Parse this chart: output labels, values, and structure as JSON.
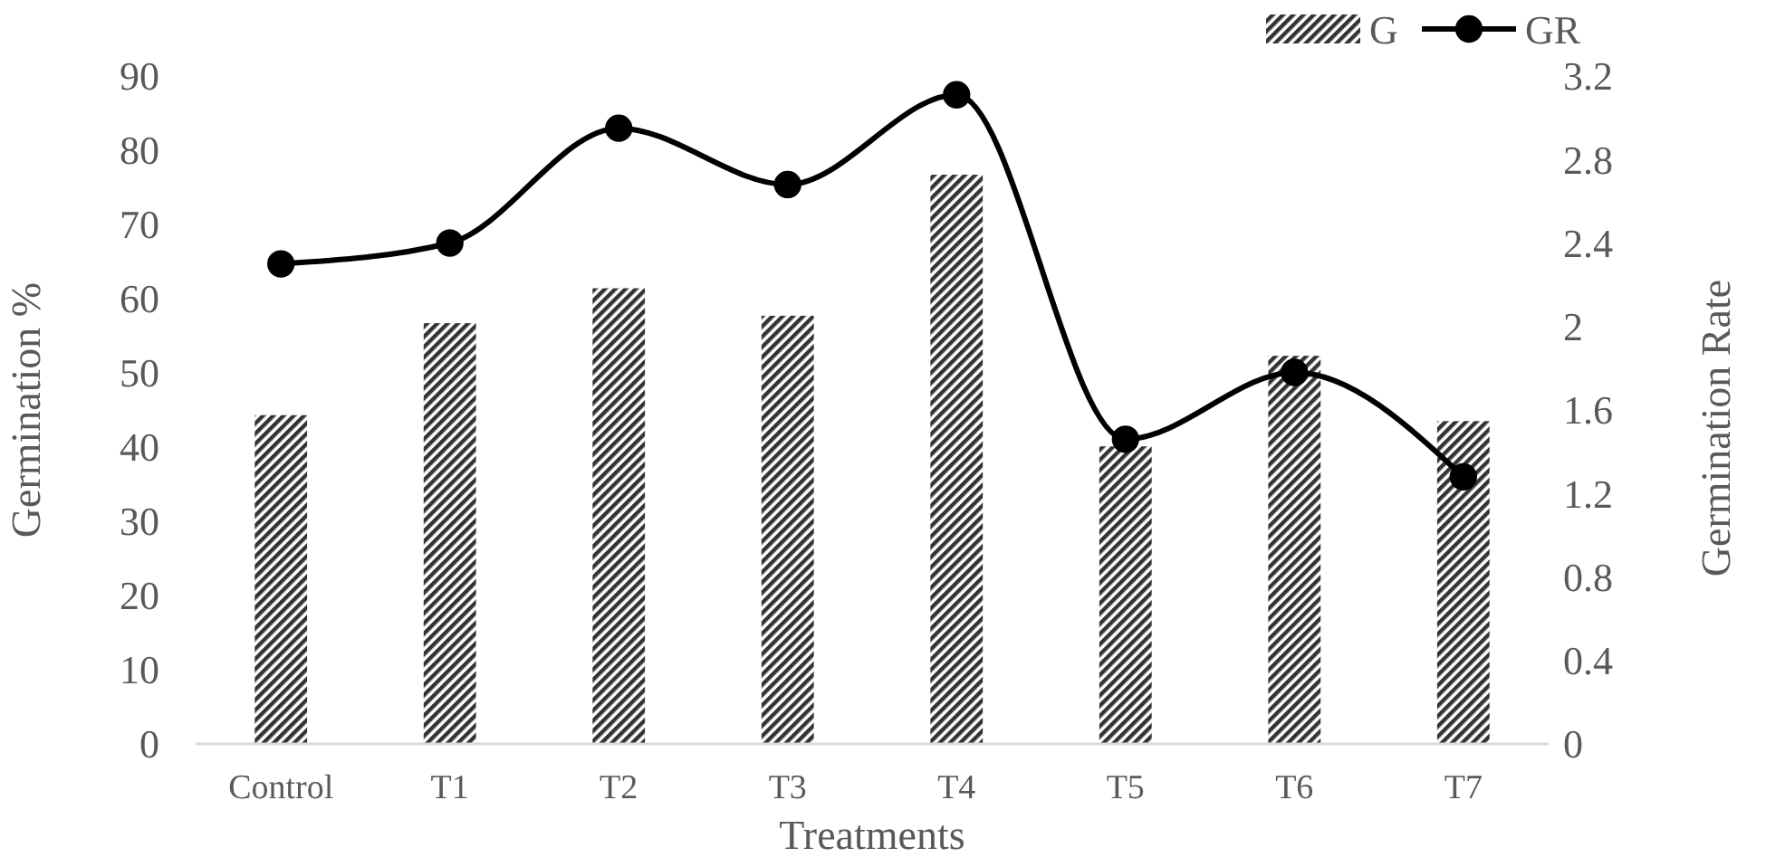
{
  "chart_data": {
    "type": "bar",
    "xlabel": "Treatments",
    "ylabel": "Germination %",
    "y2label": "Germination Rate",
    "categories": [
      "Control",
      "T1",
      "T2",
      "T3",
      "T4",
      "T5",
      "T6",
      "T7"
    ],
    "series": [
      {
        "name": "G",
        "color": "#333333",
        "values": [
          44.3,
          56.7,
          61.4,
          57.7,
          76.7,
          40.1,
          52.3,
          43.5
        ]
      },
      {
        "name": "GR",
        "type": "line",
        "axis": "y2",
        "color": "#000000",
        "marker": "circle",
        "values": [
          2.3,
          2.4,
          2.95,
          2.68,
          3.11,
          1.46,
          1.78,
          1.28
        ]
      }
    ],
    "ylim": [
      0,
      90
    ],
    "yticks": [
      0,
      10,
      20,
      30,
      40,
      50,
      60,
      70,
      80,
      90
    ],
    "y2lim": [
      0,
      3.2
    ],
    "y2ticks": [
      0,
      0.4,
      0.8,
      1.2,
      1.6,
      2,
      2.4,
      2.8,
      3.2
    ],
    "grid": false,
    "legend": "top right"
  }
}
